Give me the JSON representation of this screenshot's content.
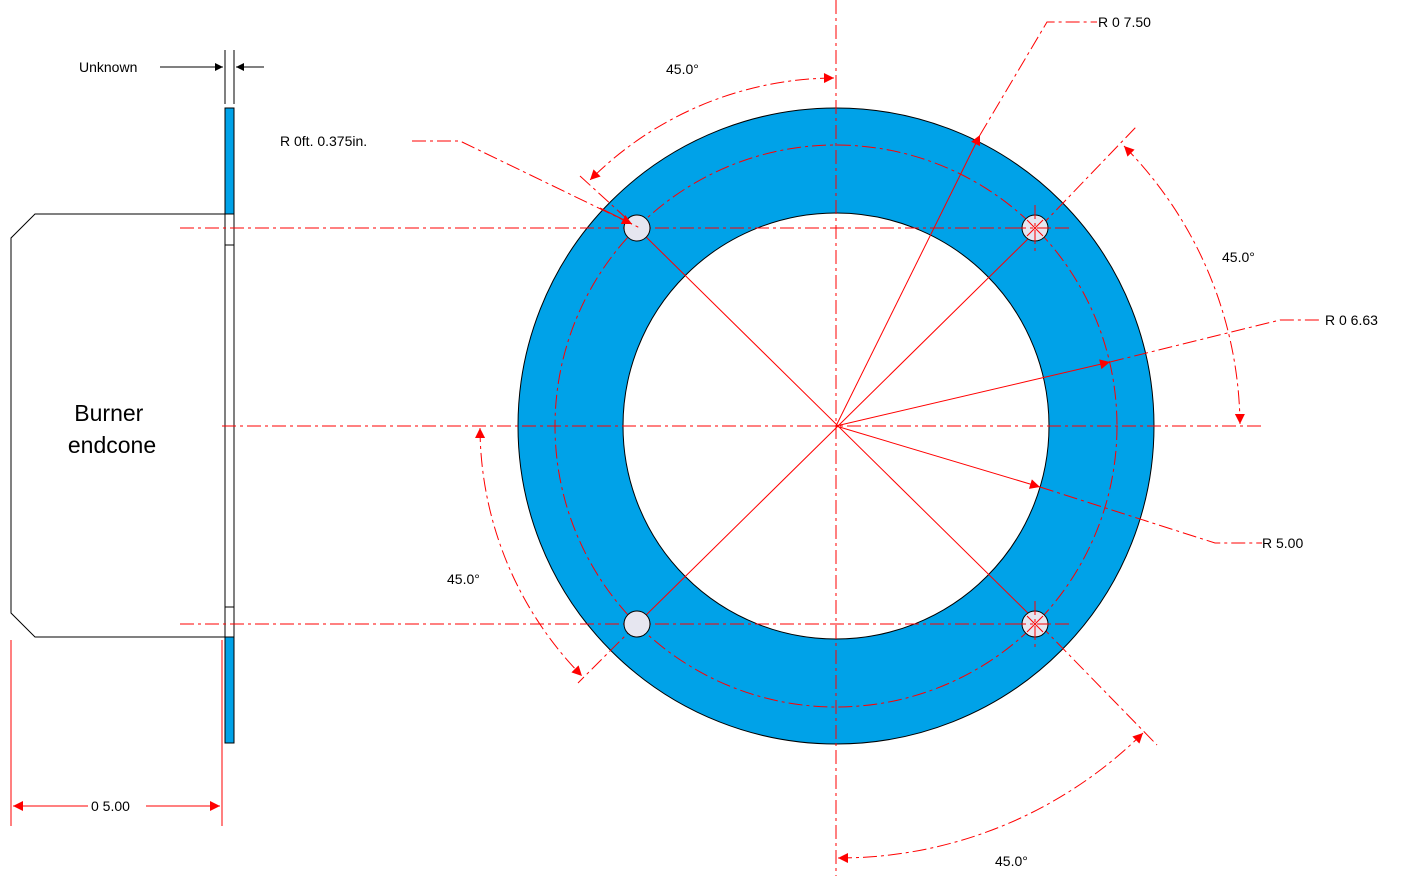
{
  "colors": {
    "flange": "#00a2e8",
    "dimension": "#ff0000",
    "outline": "#000000",
    "hole_fill": "#e6e6f0"
  },
  "labels": {
    "unknown": "Unknown",
    "burner_line1": "Burner",
    "burner_line2": "endcone",
    "dia_side": "0 5.00",
    "r_hole": "R 0ft. 0.375in.",
    "r_750": "R 0 7.50",
    "r_663": "R 0 6.63",
    "r_500": "R 5.00",
    "angle_top": "45.0°",
    "angle_right": "45.0°",
    "angle_left": "45.0°",
    "angle_bottom": "45.0°"
  }
}
